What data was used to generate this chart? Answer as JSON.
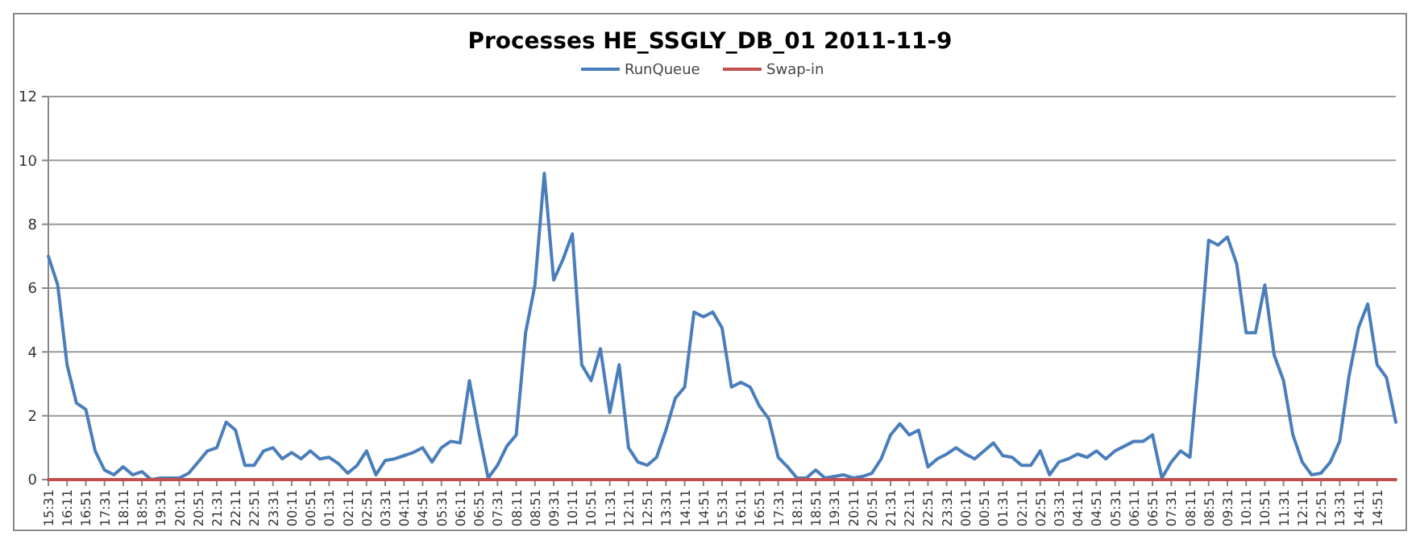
{
  "chart_data": {
    "type": "line",
    "title": "Processes HE_SSGLY_DB_01  2011-11-9",
    "categories": [
      "15:31",
      null,
      "16:11",
      null,
      "16:51",
      null,
      "17:31",
      null,
      "18:11",
      null,
      "18:51",
      null,
      "19:31",
      null,
      "20:11",
      null,
      "20:51",
      null,
      "21:31",
      null,
      "22:11",
      null,
      "22:51",
      null,
      "23:31",
      null,
      "00:11",
      null,
      "00:51",
      null,
      "01:31",
      null,
      "02:11",
      null,
      "02:51",
      null,
      "03:31",
      null,
      "04:11",
      null,
      "04:51",
      null,
      "05:31",
      null,
      "06:11",
      null,
      "06:51",
      null,
      "07:31",
      null,
      "08:11",
      null,
      "08:51",
      null,
      "09:31",
      null,
      "10:11",
      null,
      "10:51",
      null,
      "11:31",
      null,
      "12:11",
      null,
      "12:51",
      null,
      "13:31",
      null,
      "14:11",
      null,
      "14:51",
      null,
      "15:31",
      null,
      "16:11",
      null,
      "16:51",
      null,
      "17:31",
      null,
      "18:11",
      null,
      "18:51",
      null,
      "19:31",
      null,
      "20:11",
      null,
      "20:51",
      null,
      "21:31",
      null,
      "22:11",
      null,
      "22:51",
      null,
      "23:31",
      null,
      "00:11",
      null,
      "00:51",
      null,
      "01:31",
      null,
      "02:11",
      null,
      "02:51",
      null,
      "03:31",
      null,
      "04:11",
      null,
      "04:51",
      null,
      "05:31",
      null,
      "06:11",
      null,
      "06:51",
      null,
      "07:31",
      null,
      "08:11",
      null,
      "08:51",
      null,
      "09:31",
      null,
      "10:11",
      null,
      "10:51",
      null,
      "11:31",
      null,
      "12:11",
      null,
      "12:51",
      null,
      "13:31",
      null,
      "14:11",
      null,
      "14:51",
      null,
      null
    ],
    "series": [
      {
        "name": "RunQueue",
        "color": "#4a7ebb",
        "values": [
          7.0,
          6.1,
          3.6,
          2.4,
          2.2,
          0.9,
          0.3,
          0.15,
          0.4,
          0.15,
          0.25,
          0,
          0.05,
          0.05,
          0.05,
          0.2,
          0.55,
          0.9,
          1.0,
          1.8,
          1.55,
          0.45,
          0.45,
          0.9,
          1.0,
          0.65,
          0.85,
          0.65,
          0.9,
          0.65,
          0.7,
          0.5,
          0.2,
          0.45,
          0.9,
          0.15,
          0.6,
          0.65,
          0.75,
          0.85,
          1.0,
          0.55,
          1.0,
          1.2,
          1.15,
          3.1,
          1.5,
          0.05,
          0.45,
          1.05,
          1.4,
          4.6,
          6.1,
          9.6,
          6.25,
          6.9,
          7.7,
          3.6,
          3.1,
          4.1,
          2.1,
          3.6,
          1.0,
          0.55,
          0.45,
          0.7,
          1.55,
          2.55,
          2.9,
          5.25,
          5.1,
          5.25,
          4.75,
          2.9,
          3.05,
          2.9,
          2.3,
          1.9,
          0.7,
          0.4,
          0.05,
          0.05,
          0.3,
          0.05,
          0.1,
          0.15,
          0.05,
          0.1,
          0.2,
          0.65,
          1.4,
          1.75,
          1.4,
          1.55,
          0.4,
          0.65,
          0.8,
          1.0,
          0.8,
          0.65,
          0.9,
          1.15,
          0.75,
          0.7,
          0.45,
          0.45,
          0.9,
          0.15,
          0.55,
          0.65,
          0.8,
          0.7,
          0.9,
          0.65,
          0.9,
          1.05,
          1.2,
          1.2,
          1.4,
          0.05,
          0.55,
          0.9,
          0.7,
          3.9,
          7.5,
          7.35,
          7.6,
          6.75,
          4.6,
          4.6,
          6.1,
          3.9,
          3.1,
          1.4,
          0.55,
          0.15,
          0.2,
          0.55,
          1.2,
          3.25,
          4.75,
          5.5,
          3.6,
          3.2,
          1.8
        ]
      },
      {
        "name": "Swap-in",
        "color": "#c0504d",
        "values": [
          0,
          0,
          0,
          0,
          0,
          0,
          0,
          0,
          0,
          0,
          0,
          0,
          0,
          0,
          0,
          0,
          0,
          0,
          0,
          0,
          0,
          0,
          0,
          0,
          0,
          0,
          0,
          0,
          0,
          0,
          0,
          0,
          0,
          0,
          0,
          0,
          0,
          0,
          0,
          0,
          0,
          0,
          0,
          0,
          0,
          0,
          0,
          0,
          0,
          0,
          0,
          0,
          0,
          0,
          0,
          0,
          0,
          0,
          0,
          0,
          0,
          0,
          0,
          0,
          0,
          0,
          0,
          0,
          0,
          0,
          0,
          0,
          0,
          0,
          0,
          0,
          0,
          0,
          0,
          0,
          0,
          0,
          0,
          0,
          0,
          0,
          0,
          0,
          0,
          0,
          0,
          0,
          0,
          0,
          0,
          0,
          0,
          0,
          0,
          0,
          0,
          0,
          0,
          0,
          0,
          0,
          0,
          0,
          0,
          0,
          0,
          0,
          0,
          0,
          0,
          0,
          0,
          0,
          0,
          0,
          0,
          0,
          0,
          0,
          0,
          0,
          0,
          0,
          0,
          0,
          0,
          0,
          0,
          0,
          0,
          0,
          0,
          0,
          0,
          0,
          0,
          0,
          0,
          0,
          0
        ]
      }
    ],
    "ylim": [
      0,
      12
    ],
    "yticks": [
      0,
      2,
      4,
      6,
      8,
      10,
      12
    ],
    "grid": "y",
    "legend": "top",
    "marker": "none",
    "line_style": "solid"
  }
}
